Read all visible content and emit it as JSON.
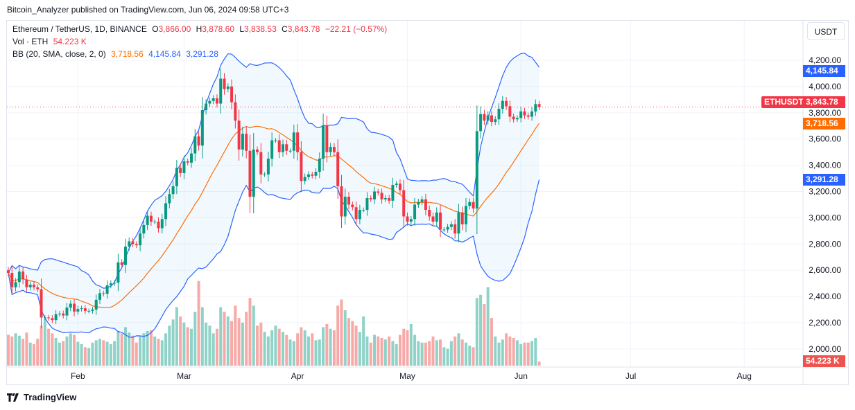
{
  "header": {
    "published": "Bitcoin_Analyzer published on TradingView.com, Jun 06, 2024 09:58 UTC+3"
  },
  "legend": {
    "symbol": "Ethereum / TetherUS, 1D, BINANCE",
    "o_label": "O",
    "o": "3,866.00",
    "h_label": "H",
    "h": "3,878.60",
    "l_label": "L",
    "l": "3,838.53",
    "c_label": "C",
    "c": "3,843.78",
    "change": "−22.21 (−0.57%)",
    "vol_label": "Vol · ETH",
    "vol": "54.223 K",
    "bb_label": "BB (20, SMA, close, 2, 0)",
    "bb_basis": "3,718.56",
    "bb_upper": "4,145.84",
    "bb_lower": "3,291.28"
  },
  "price_axis": {
    "currency": "USDT",
    "ticks": [
      "2,000.00",
      "2,200.00",
      "2,400.00",
      "2,600.00",
      "2,800.00",
      "3,000.00",
      "3,200.00",
      "3,400.00",
      "3,600.00",
      "3,800.00",
      "4,000.00",
      "4,200.00"
    ]
  },
  "tags": {
    "symbol": "ETHUSDT",
    "last": "3,843.78",
    "upper": "4,145.84",
    "basis": "3,718.56",
    "lower": "3,291.28",
    "volume": "54.223 K"
  },
  "time_axis": {
    "labels": [
      "Feb",
      "Mar",
      "Apr",
      "May",
      "Jun",
      "Jul",
      "Aug"
    ]
  },
  "footer": {
    "brand": "TradingView"
  },
  "colors": {
    "up": "#089981",
    "down": "#f23645",
    "bb_band": "#2962ff",
    "bb_basis": "#ff6d00",
    "vol_up": "#8fd2c7",
    "vol_down": "#f7a9a7"
  },
  "chart_data": {
    "type": "candlestick",
    "symbol": "ETHUSDT",
    "interval": "1D",
    "start_date": "2024-01-13",
    "end_date": "2024-06-06",
    "ylim": [
      1950,
      4350
    ],
    "first_open": 2600,
    "close": [
      2580,
      2470,
      2510,
      2590,
      2530,
      2470,
      2490,
      2470,
      2455,
      2240,
      2240,
      2235,
      2220,
      2265,
      2270,
      2255,
      2315,
      2345,
      2285,
      2305,
      2310,
      2290,
      2290,
      2300,
      2375,
      2425,
      2420,
      2485,
      2500,
      2505,
      2660,
      2640,
      2780,
      2820,
      2800,
      2790,
      2880,
      2945,
      3015,
      2970,
      2970,
      2920,
      2990,
      3110,
      3180,
      3240,
      3380,
      3340,
      3430,
      3420,
      3490,
      3620,
      3550,
      3820,
      3870,
      3890,
      3910,
      3870,
      4060,
      3980,
      4000,
      3880,
      3740,
      3520,
      3640,
      3510,
      3160,
      3520,
      3500,
      3330,
      3330,
      3450,
      3590,
      3590,
      3500,
      3560,
      3510,
      3510,
      3650,
      3500,
      3280,
      3310,
      3330,
      3320,
      3350,
      3450,
      3700,
      3500,
      3540,
      3500,
      3240,
      3010,
      3160,
      3100,
      3080,
      2990,
      3060,
      3060,
      3150,
      3140,
      3200,
      3190,
      3140,
      3150,
      3130,
      3250,
      3260,
      3210,
      3010,
      2970,
      2990,
      3100,
      3120,
      3140,
      3060,
      3010,
      2970,
      3040,
      2910,
      2910,
      2930,
      2950,
      2880,
      3040,
      2950,
      3090,
      3120,
      3070,
      3660,
      3790,
      3740,
      3780,
      3730,
      3750,
      3830,
      3890,
      3850,
      3770,
      3750,
      3760,
      3810,
      3780,
      3770,
      3810,
      3866,
      3843.78
    ],
    "volume_k": [
      400,
      380,
      420,
      390,
      350,
      430,
      300,
      280,
      350,
      520,
      600,
      480,
      420,
      360,
      300,
      320,
      380,
      420,
      400,
      310,
      280,
      240,
      230,
      300,
      330,
      350,
      330,
      310,
      280,
      320,
      450,
      420,
      500,
      430,
      390,
      300,
      380,
      420,
      450,
      460,
      380,
      350,
      330,
      420,
      520,
      600,
      760,
      640,
      560,
      500,
      480,
      700,
      1100,
      760,
      560,
      520,
      420,
      480,
      760,
      700,
      640,
      580,
      780,
      620,
      560,
      700,
      880,
      780,
      520,
      560,
      440,
      380,
      460,
      520,
      480,
      440,
      400,
      340,
      320,
      420,
      500,
      460,
      380,
      420,
      330,
      340,
      500,
      540,
      480,
      460,
      780,
      860,
      720,
      620,
      580,
      520,
      440,
      640,
      380,
      300,
      400,
      380,
      360,
      340,
      380,
      320,
      280,
      400,
      480,
      460,
      540,
      400,
      320,
      300,
      300,
      320,
      380,
      330,
      340,
      240,
      220,
      320,
      380,
      420,
      340,
      300,
      260,
      240,
      880,
      920,
      800,
      1020,
      620,
      380,
      300,
      340,
      420,
      380,
      360,
      330,
      280,
      300,
      300,
      320,
      360,
      54.223
    ],
    "indicators": {
      "bollinger": {
        "length": 20,
        "mult": 2,
        "basis_last": 3718.56,
        "upper_last": 4145.84,
        "lower_last": 3291.28
      }
    }
  }
}
